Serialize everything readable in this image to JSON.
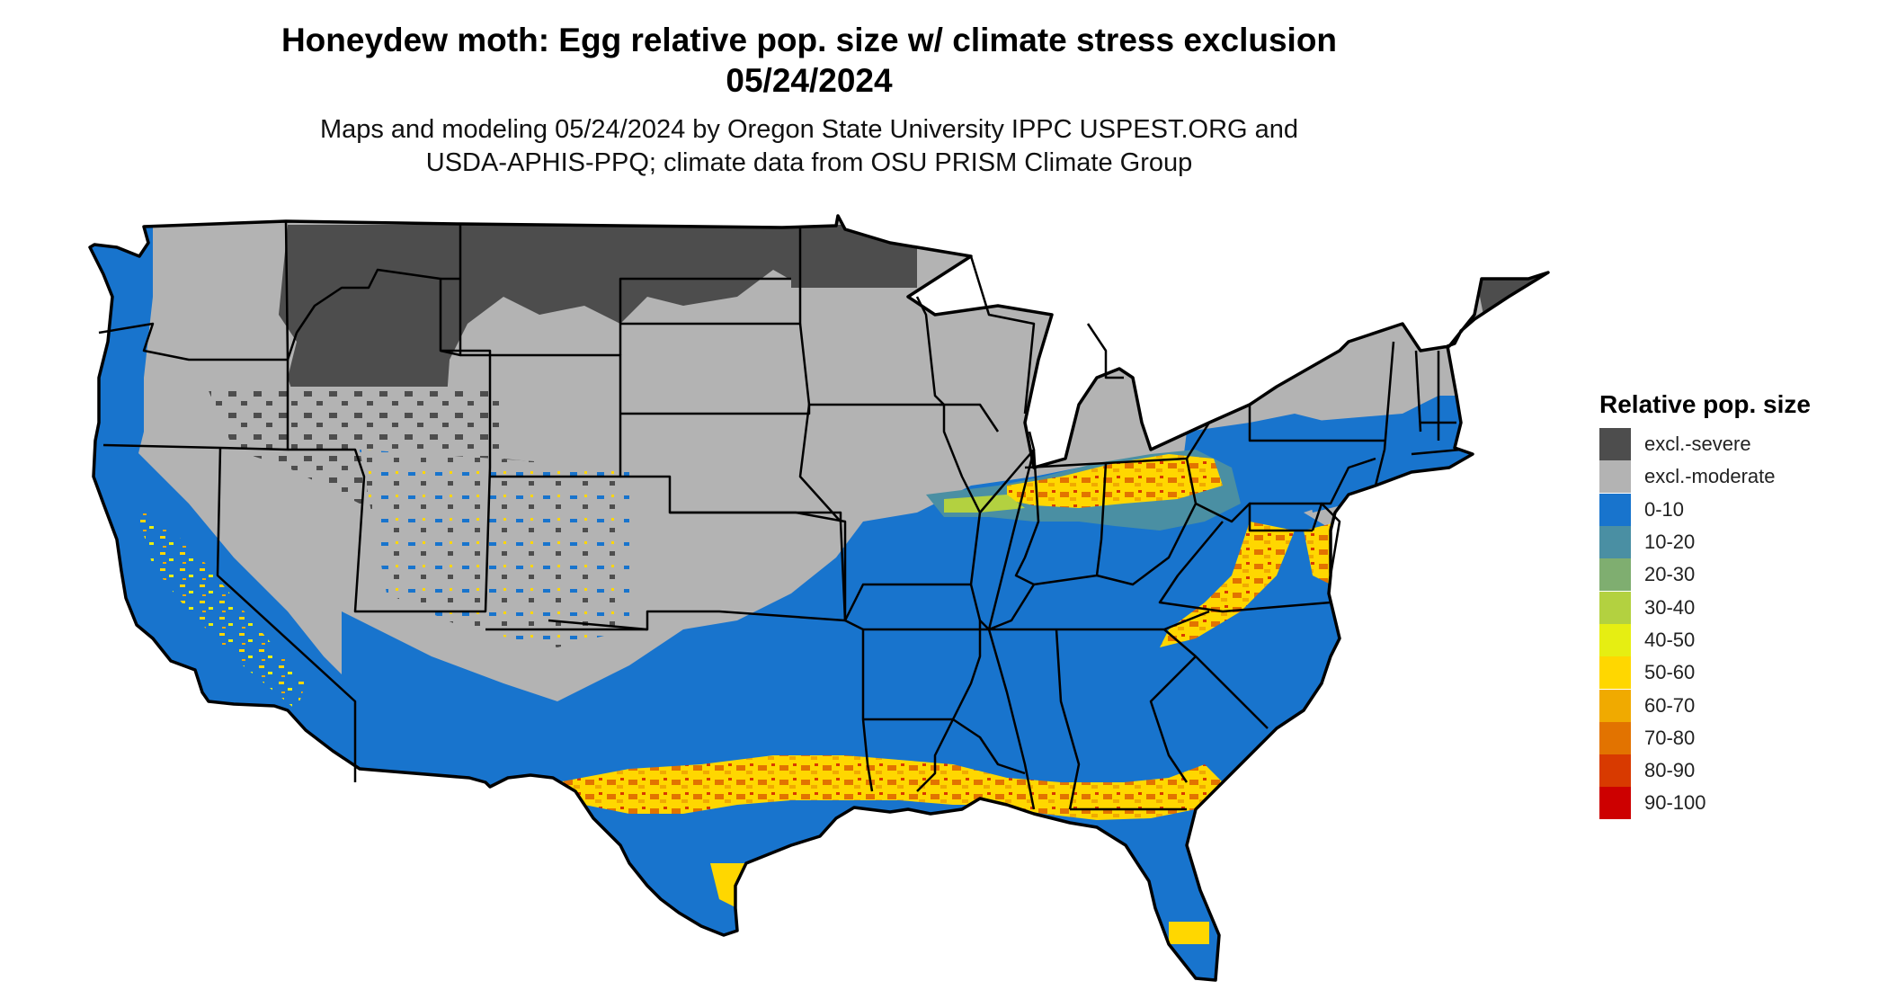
{
  "title": {
    "line1": "Honeydew moth: Egg relative pop. size w/ climate stress exclusion",
    "line2": "05/24/2024"
  },
  "subtitle": {
    "line1": "Maps and modeling 05/24/2024 by Oregon State University IPPC USPEST.ORG and",
    "line2": "USDA-APHIS-PPQ; climate data from OSU PRISM Climate Group"
  },
  "legend": {
    "title": "Relative pop. size",
    "items": [
      {
        "label": "excl.-severe",
        "color": "#4d4d4d"
      },
      {
        "label": "excl.-moderate",
        "color": "#b3b3b3"
      },
      {
        "label": "0-10",
        "color": "#1874cd"
      },
      {
        "label": "10-20",
        "color": "#4a8fa3"
      },
      {
        "label": "20-30",
        "color": "#7fae70"
      },
      {
        "label": "30-40",
        "color": "#b3d140"
      },
      {
        "label": "40-50",
        "color": "#e6ee12"
      },
      {
        "label": "50-60",
        "color": "#ffd700"
      },
      {
        "label": "60-70",
        "color": "#f0aa00"
      },
      {
        "label": "70-80",
        "color": "#e27300"
      },
      {
        "label": "80-90",
        "color": "#d83a00"
      },
      {
        "label": "90-100",
        "color": "#cd0000"
      }
    ]
  }
}
